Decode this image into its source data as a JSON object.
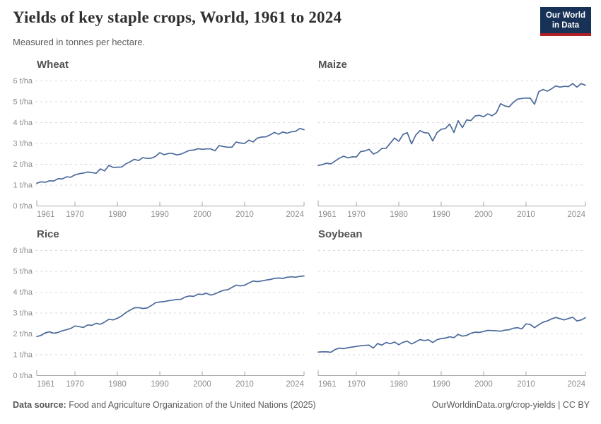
{
  "header": {
    "title": "Yields of key staple crops, World, 1961 to 2024",
    "subtitle": "Measured in tonnes per hectare.",
    "logo": {
      "line1": "Our World",
      "line2": "in Data"
    }
  },
  "footer": {
    "source_label": "Data source:",
    "source_text": " Food and Agriculture Organization of the United Nations (2025)",
    "attribution": "OurWorldinData.org/crop-yields | CC BY"
  },
  "colors": {
    "line": "#4c6a9c",
    "grid": "#d9d9d9",
    "axis": "#a5a5a5",
    "tick_label": "#8e8e8e",
    "logo_bg": "#183156",
    "logo_red": "#b01f24"
  },
  "chart_data": [
    {
      "type": "line",
      "title": "Wheat",
      "unit": "t/ha",
      "x_range": [
        1961,
        2024
      ],
      "ylim": [
        0,
        6
      ],
      "grid": "dashed-horizontal",
      "legend": "none",
      "y_tick_labels": [
        "0 t/ha",
        "1 t/ha",
        "2 t/ha",
        "3 t/ha",
        "4 t/ha",
        "5 t/ha",
        "6 t/ha"
      ],
      "x_ticks": [
        1961,
        1970,
        1980,
        1990,
        2000,
        2010,
        2024
      ],
      "values": [
        1.09,
        1.16,
        1.14,
        1.21,
        1.2,
        1.31,
        1.3,
        1.4,
        1.38,
        1.49,
        1.55,
        1.58,
        1.63,
        1.6,
        1.57,
        1.78,
        1.68,
        1.95,
        1.85,
        1.86,
        1.87,
        2.02,
        2.12,
        2.24,
        2.18,
        2.32,
        2.28,
        2.29,
        2.38,
        2.56,
        2.46,
        2.52,
        2.52,
        2.45,
        2.49,
        2.58,
        2.67,
        2.68,
        2.75,
        2.72,
        2.74,
        2.74,
        2.65,
        2.9,
        2.85,
        2.82,
        2.82,
        3.07,
        3.02,
        3.0,
        3.16,
        3.07,
        3.26,
        3.31,
        3.32,
        3.41,
        3.53,
        3.44,
        3.55,
        3.49,
        3.56,
        3.58,
        3.72,
        3.66
      ]
    },
    {
      "type": "line",
      "title": "Maize",
      "unit": "t/ha",
      "x_range": [
        1961,
        2024
      ],
      "ylim": [
        0,
        6
      ],
      "grid": "dashed-horizontal",
      "legend": "none",
      "y_tick_labels": [
        "0 t/ha",
        "1 t/ha",
        "2 t/ha",
        "3 t/ha",
        "4 t/ha",
        "5 t/ha",
        "6 t/ha"
      ],
      "x_ticks": [
        1961,
        1970,
        1980,
        1990,
        2000,
        2010,
        2024
      ],
      "values": [
        1.94,
        1.99,
        2.05,
        2.02,
        2.16,
        2.29,
        2.39,
        2.31,
        2.36,
        2.35,
        2.61,
        2.64,
        2.72,
        2.49,
        2.58,
        2.76,
        2.77,
        3.01,
        3.26,
        3.1,
        3.43,
        3.52,
        2.98,
        3.4,
        3.62,
        3.52,
        3.5,
        3.12,
        3.52,
        3.68,
        3.72,
        3.93,
        3.53,
        4.09,
        3.76,
        4.13,
        4.1,
        4.32,
        4.35,
        4.28,
        4.42,
        4.33,
        4.47,
        4.91,
        4.8,
        4.76,
        4.97,
        5.13,
        5.16,
        5.18,
        5.17,
        4.88,
        5.48,
        5.59,
        5.51,
        5.62,
        5.76,
        5.7,
        5.74,
        5.73,
        5.87,
        5.7,
        5.87,
        5.79
      ]
    },
    {
      "type": "line",
      "title": "Rice",
      "unit": "t/ha",
      "x_range": [
        1961,
        2024
      ],
      "ylim": [
        0,
        6
      ],
      "grid": "dashed-horizontal",
      "legend": "none",
      "y_tick_labels": [
        "0 t/ha",
        "1 t/ha",
        "2 t/ha",
        "3 t/ha",
        "4 t/ha",
        "5 t/ha",
        "6 t/ha"
      ],
      "x_ticks": [
        1961,
        1970,
        1980,
        1990,
        2000,
        2010,
        2024
      ],
      "values": [
        1.87,
        1.93,
        2.05,
        2.1,
        2.03,
        2.07,
        2.15,
        2.2,
        2.26,
        2.38,
        2.35,
        2.31,
        2.43,
        2.41,
        2.51,
        2.46,
        2.57,
        2.7,
        2.67,
        2.75,
        2.86,
        3.02,
        3.14,
        3.25,
        3.26,
        3.22,
        3.24,
        3.36,
        3.5,
        3.53,
        3.55,
        3.59,
        3.62,
        3.65,
        3.66,
        3.77,
        3.82,
        3.8,
        3.91,
        3.89,
        3.95,
        3.86,
        3.92,
        4.01,
        4.09,
        4.12,
        4.23,
        4.34,
        4.3,
        4.34,
        4.44,
        4.54,
        4.51,
        4.54,
        4.58,
        4.61,
        4.66,
        4.68,
        4.66,
        4.72,
        4.74,
        4.72,
        4.76,
        4.78
      ]
    },
    {
      "type": "line",
      "title": "Soybean",
      "unit": "t/ha",
      "x_range": [
        1961,
        2024
      ],
      "ylim": [
        0,
        6
      ],
      "grid": "dashed-horizontal",
      "legend": "none",
      "y_tick_labels": [
        "0 t/ha",
        "1 t/ha",
        "2 t/ha",
        "3 t/ha",
        "4 t/ha",
        "5 t/ha",
        "6 t/ha"
      ],
      "x_ticks": [
        1961,
        1970,
        1980,
        1990,
        2000,
        2010,
        2024
      ],
      "values": [
        1.13,
        1.14,
        1.14,
        1.12,
        1.25,
        1.32,
        1.29,
        1.34,
        1.37,
        1.4,
        1.43,
        1.45,
        1.46,
        1.32,
        1.54,
        1.46,
        1.59,
        1.53,
        1.61,
        1.48,
        1.6,
        1.65,
        1.52,
        1.62,
        1.73,
        1.68,
        1.72,
        1.59,
        1.72,
        1.78,
        1.8,
        1.86,
        1.82,
        1.98,
        1.89,
        1.93,
        2.03,
        2.08,
        2.07,
        2.12,
        2.17,
        2.16,
        2.15,
        2.13,
        2.18,
        2.2,
        2.27,
        2.3,
        2.24,
        2.48,
        2.45,
        2.3,
        2.44,
        2.56,
        2.62,
        2.72,
        2.79,
        2.73,
        2.67,
        2.74,
        2.8,
        2.62,
        2.67,
        2.78
      ]
    }
  ]
}
